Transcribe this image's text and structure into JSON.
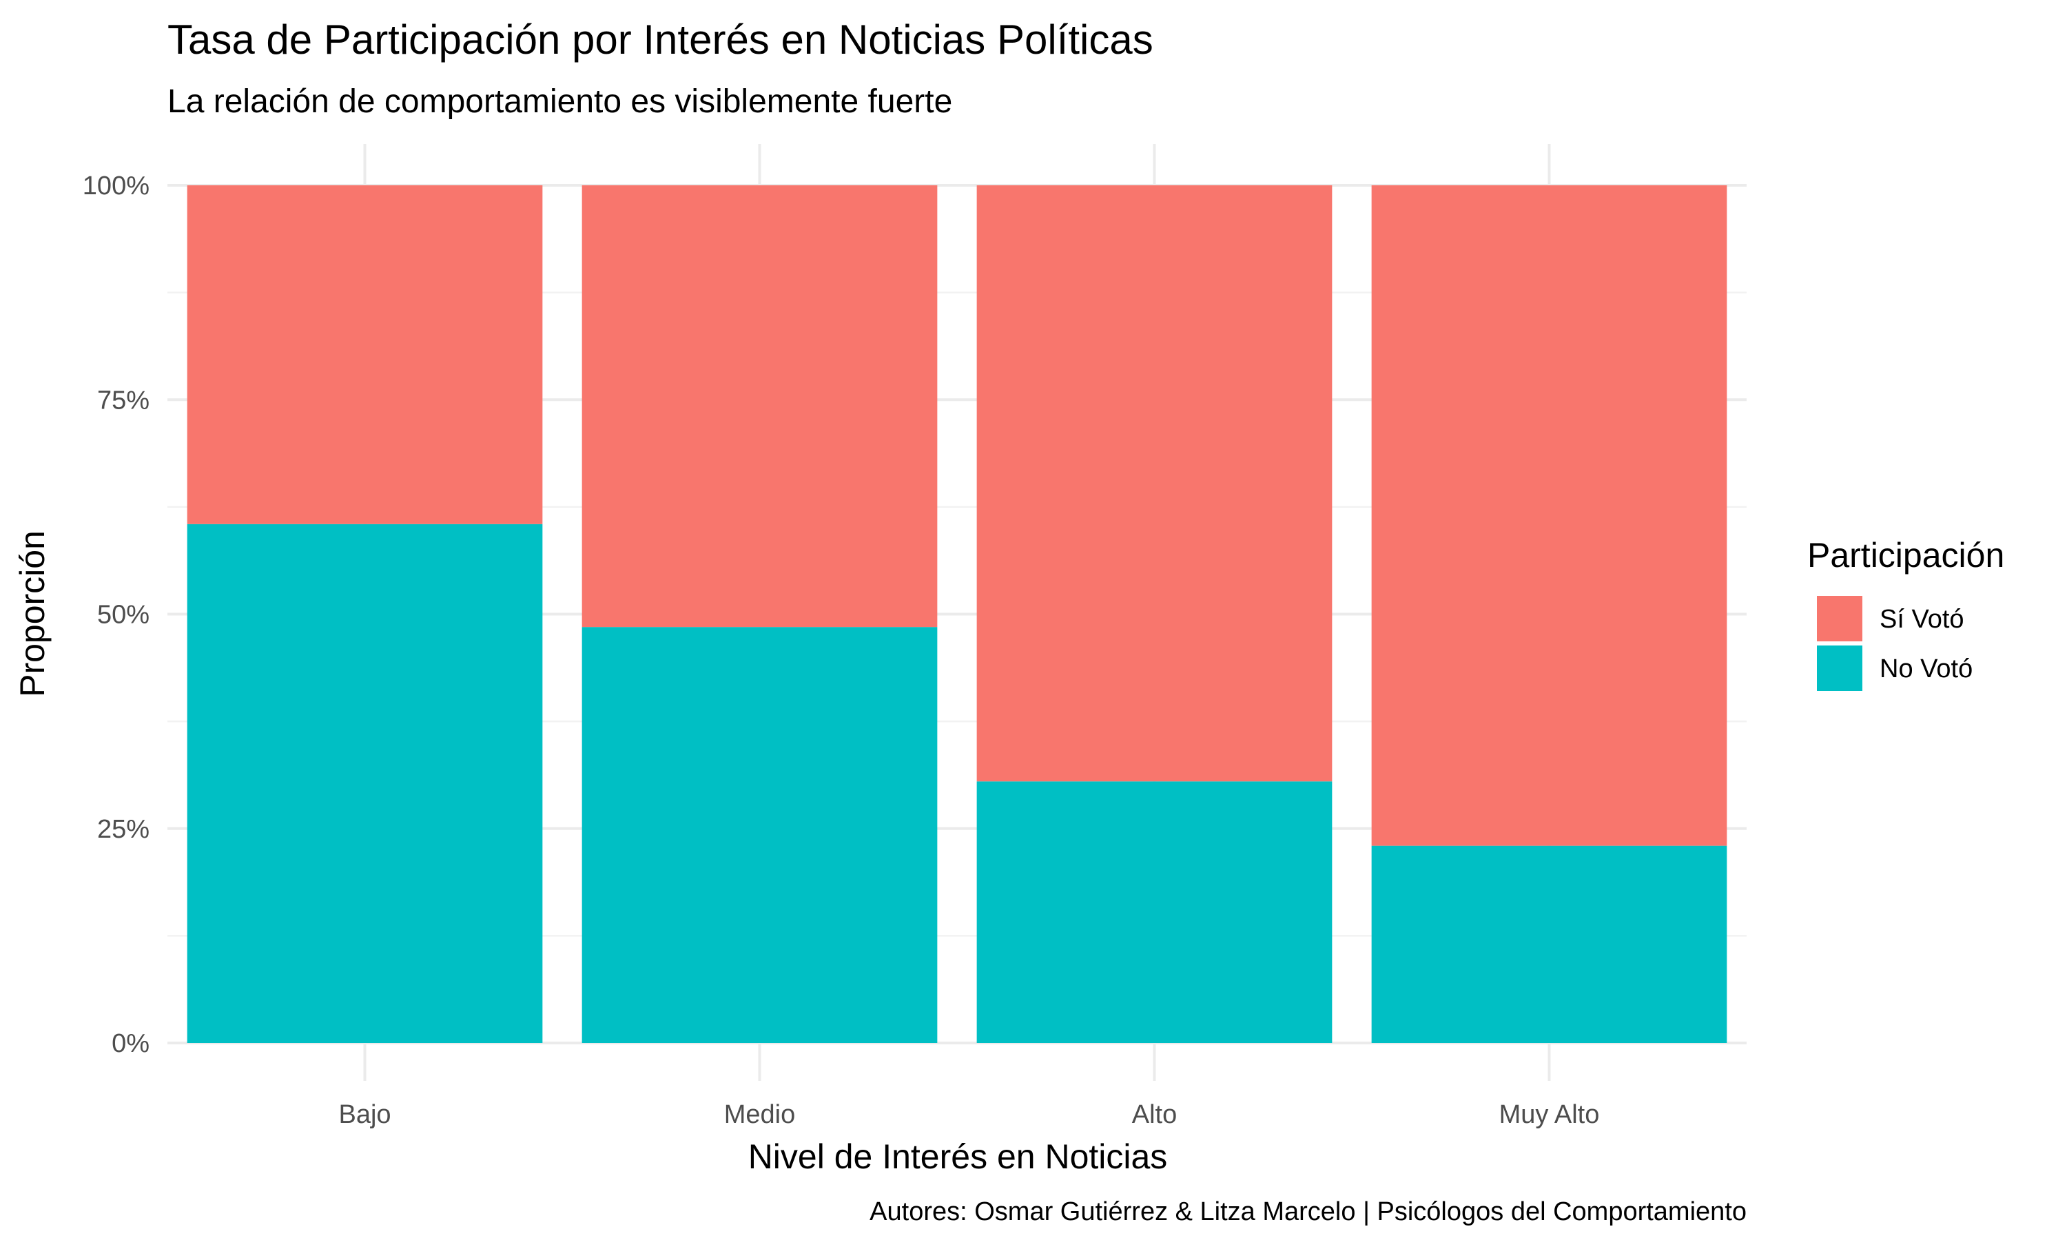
{
  "chart_data": {
    "type": "bar",
    "stacked": "fill",
    "title": "Tasa de Participación por Interés en Noticias Políticas",
    "subtitle": "La relación de comportamiento es visiblemente fuerte",
    "xlabel": "Nivel de Interés en Noticias",
    "ylabel": "Proporción",
    "caption": "Autores: Osmar Gutiérrez & Litza Marcelo | Psicólogos del Comportamiento",
    "categories": [
      "Bajo",
      "Medio",
      "Alto",
      "Muy Alto"
    ],
    "ylim": [
      0,
      1
    ],
    "y_ticks": [
      0,
      0.25,
      0.5,
      0.75,
      1
    ],
    "y_tick_labels": [
      "0%",
      "25%",
      "50%",
      "75%",
      "100%"
    ],
    "grid": true,
    "legend": {
      "title": "Participación",
      "position": "right",
      "entries": [
        "Sí Votó",
        "No Votó"
      ]
    },
    "series": [
      {
        "name": "No Votó",
        "color": "#00BFC4",
        "values": [
          0.605,
          0.485,
          0.305,
          0.23
        ]
      },
      {
        "name": "Sí Votó",
        "color": "#F8766D",
        "values": [
          0.395,
          0.515,
          0.695,
          0.77
        ]
      }
    ]
  }
}
